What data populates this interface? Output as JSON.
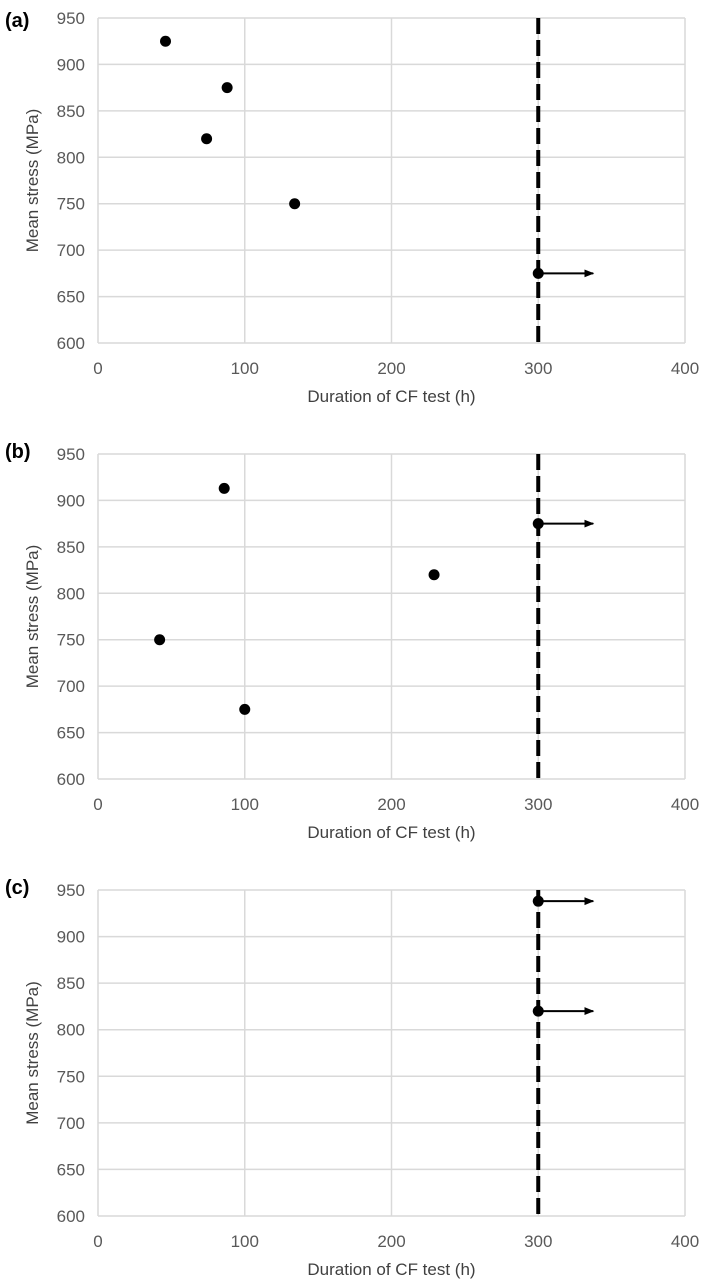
{
  "chart_data": [
    {
      "panel": "(a)",
      "type": "scatter",
      "xlabel": "Duration of CF test (h)",
      "ylabel": "Mean stress (MPa)",
      "xlim": [
        0,
        400
      ],
      "ylim": [
        600,
        950
      ],
      "xticks": [
        "0",
        "100",
        "200",
        "300",
        "400"
      ],
      "yticks": [
        "600",
        "650",
        "700",
        "750",
        "800",
        "850",
        "900",
        "950"
      ],
      "grid": true,
      "vline": 300,
      "points": [
        {
          "x": 46,
          "y": 925,
          "runout": false
        },
        {
          "x": 88,
          "y": 875,
          "runout": false
        },
        {
          "x": 74,
          "y": 820,
          "runout": false
        },
        {
          "x": 134,
          "y": 750,
          "runout": false
        },
        {
          "x": 300,
          "y": 675,
          "runout": true
        }
      ]
    },
    {
      "panel": "(b)",
      "type": "scatter",
      "xlabel": "Duration of CF test (h)",
      "ylabel": "Mean stress (MPa)",
      "xlim": [
        0,
        400
      ],
      "ylim": [
        600,
        950
      ],
      "xticks": [
        "0",
        "100",
        "200",
        "300",
        "400"
      ],
      "yticks": [
        "600",
        "650",
        "700",
        "750",
        "800",
        "850",
        "900",
        "950"
      ],
      "grid": true,
      "vline": 300,
      "points": [
        {
          "x": 86,
          "y": 913,
          "runout": false
        },
        {
          "x": 300,
          "y": 875,
          "runout": true
        },
        {
          "x": 229,
          "y": 820,
          "runout": false
        },
        {
          "x": 42,
          "y": 750,
          "runout": false
        },
        {
          "x": 100,
          "y": 675,
          "runout": false
        }
      ]
    },
    {
      "panel": "(c)",
      "type": "scatter",
      "xlabel": "Duration of CF test (h)",
      "ylabel": "Mean stress (MPa)",
      "xlim": [
        0,
        400
      ],
      "ylim": [
        600,
        950
      ],
      "xticks": [
        "0",
        "100",
        "200",
        "300",
        "400"
      ],
      "yticks": [
        "600",
        "650",
        "700",
        "750",
        "800",
        "850",
        "900",
        "950"
      ],
      "grid": true,
      "vline": 300,
      "points": [
        {
          "x": 300,
          "y": 938,
          "runout": true
        },
        {
          "x": 300,
          "y": 820,
          "runout": true
        }
      ]
    }
  ],
  "colors": {
    "grid": "#d9d9d9",
    "marker": "#000000",
    "tick_text": "#595959",
    "axis_title": "#404040"
  }
}
